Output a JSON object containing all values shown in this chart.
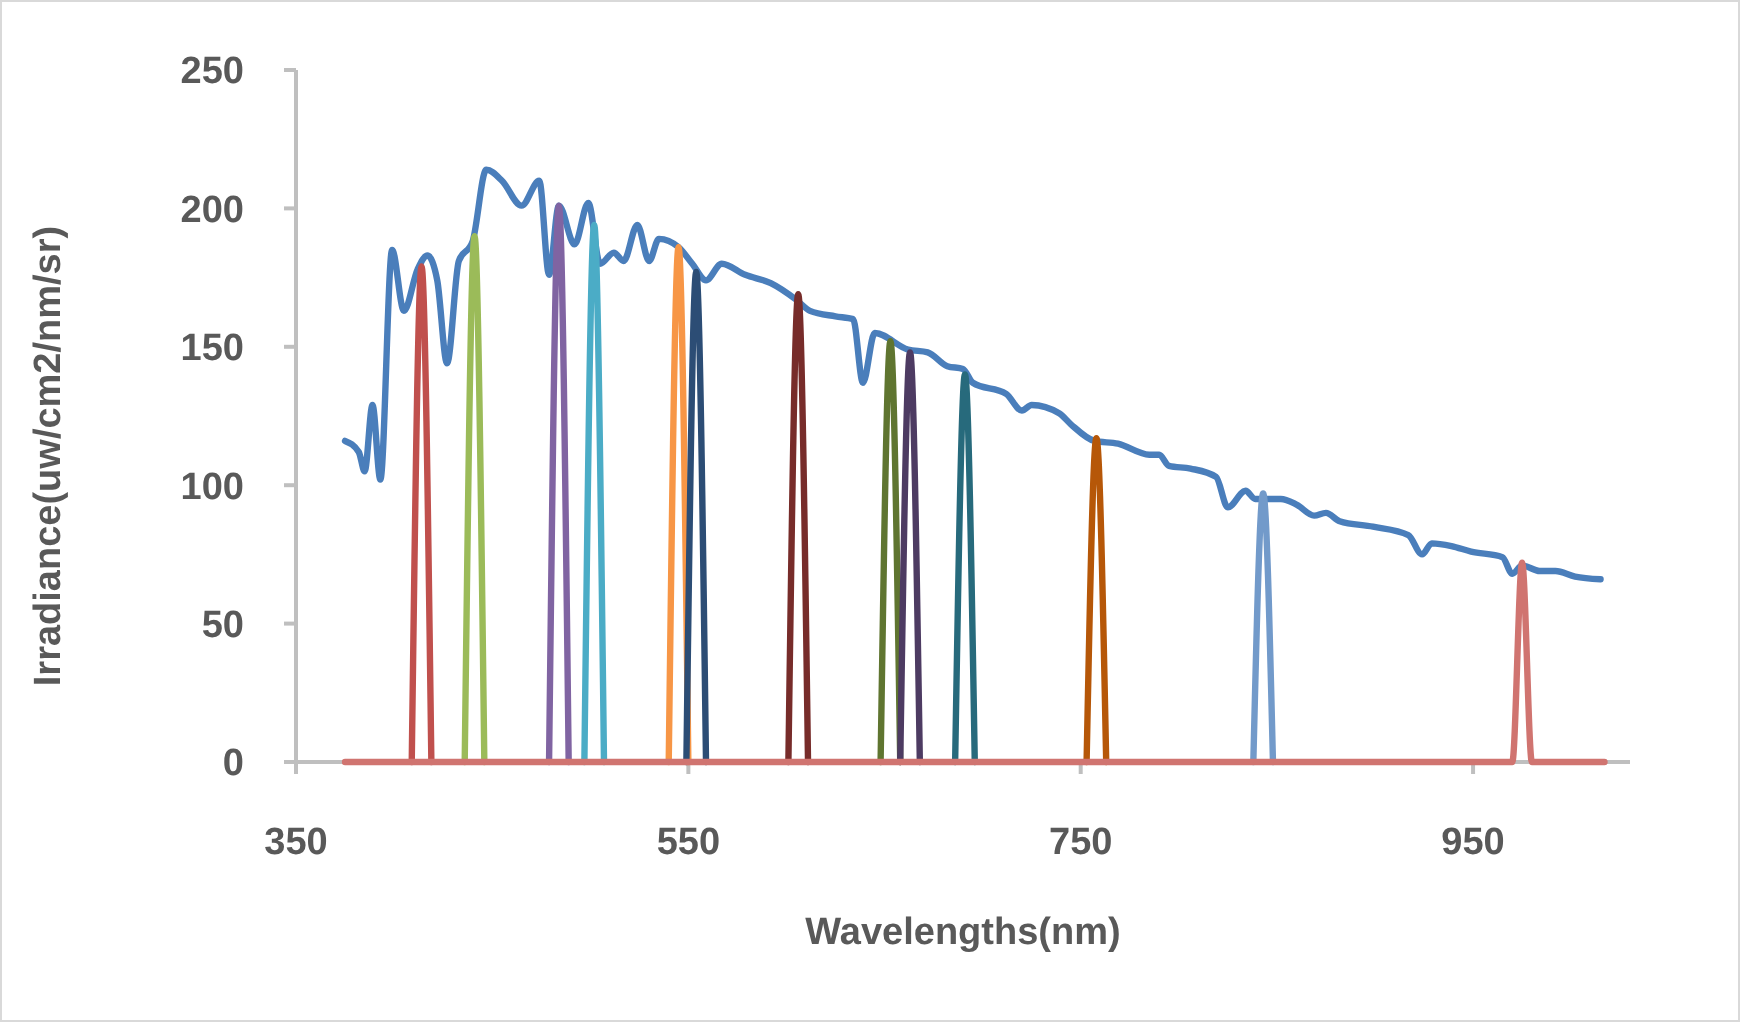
{
  "chart_data": {
    "type": "line",
    "xlabel": "Wavelengths(nm)",
    "ylabel": "Irradiance(uw/cm2/nm/sr)",
    "xlim": [
      350,
      1030
    ],
    "xticks": [
      350,
      550,
      750,
      950
    ],
    "ylim": [
      0,
      250
    ],
    "yticks": [
      0,
      50,
      100,
      150,
      200,
      250
    ],
    "grid": false,
    "series": [
      {
        "color": "#4a7ebb",
        "x": [
          375,
          382,
          385,
          389,
          393,
          399,
          405,
          412,
          417,
          422,
          427,
          433,
          440,
          447,
          455,
          465,
          474,
          479,
          484,
          492,
          499,
          505,
          512,
          517,
          524,
          530,
          535,
          545,
          552,
          559,
          567,
          579,
          592,
          605,
          612,
          625,
          634,
          639,
          645,
          662,
          672,
          682,
          690,
          695,
          712,
          720,
          725,
          739,
          745,
          757,
          769,
          785,
          790,
          795,
          806,
          819,
          825,
          834,
          839,
          852,
          860,
          869,
          875,
          882,
          899,
          917,
          924,
          929,
          939,
          949,
          965,
          970,
          975,
          984,
          992,
          1002,
          1015
        ],
        "values": [
          116,
          112,
          105,
          129,
          102,
          185,
          163,
          178,
          183,
          174,
          144,
          181,
          188,
          214,
          210,
          201,
          210,
          176,
          201,
          187,
          202,
          180,
          184,
          181,
          194,
          181,
          189,
          186,
          180,
          174,
          180,
          176,
          173,
          167,
          163,
          161,
          160,
          137,
          155,
          149,
          148,
          143,
          142,
          137,
          133,
          127,
          129,
          126,
          122,
          116,
          115,
          111,
          111,
          107,
          106,
          103,
          92,
          98,
          95,
          95,
          93,
          89,
          90,
          87,
          85,
          82,
          75,
          79,
          78,
          76,
          74,
          68,
          71,
          69,
          69,
          67,
          66
        ]
      },
      {
        "color": "#c0504d",
        "x": [
          409,
          414,
          419
        ],
        "values": [
          0,
          179,
          0
        ]
      },
      {
        "color": "#9bbb59",
        "x": [
          436,
          441,
          446
        ],
        "values": [
          0,
          190,
          0
        ]
      },
      {
        "color": "#8064a2",
        "x": [
          479,
          484,
          489
        ],
        "values": [
          0,
          201,
          0
        ]
      },
      {
        "color": "#4bacc6",
        "x": [
          497,
          502,
          507
        ],
        "values": [
          0,
          194,
          0
        ]
      },
      {
        "color": "#f79646",
        "x": [
          540,
          545,
          550
        ],
        "values": [
          0,
          186,
          0
        ]
      },
      {
        "color": "#2c4d75",
        "x": [
          549,
          554,
          559
        ],
        "values": [
          0,
          177,
          0
        ]
      },
      {
        "color": "#772c2a",
        "x": [
          601,
          606,
          611
        ],
        "values": [
          0,
          169,
          0
        ]
      },
      {
        "color": "#5f7530",
        "x": [
          648,
          653,
          658
        ],
        "values": [
          0,
          152,
          0
        ]
      },
      {
        "color": "#4d3b62",
        "x": [
          658,
          663,
          668
        ],
        "values": [
          0,
          148,
          0
        ]
      },
      {
        "color": "#276a7c",
        "x": [
          686,
          691,
          696
        ],
        "values": [
          0,
          140,
          0
        ]
      },
      {
        "color": "#b65708",
        "x": [
          753,
          758,
          763
        ],
        "values": [
          0,
          117,
          0
        ]
      },
      {
        "color": "#729aca",
        "x": [
          838,
          843,
          848
        ],
        "values": [
          0,
          97,
          0
        ]
      },
      {
        "color": "#d07470",
        "x": [
          375,
          970,
          975,
          980,
          1017
        ],
        "values": [
          0,
          0,
          72,
          0,
          0
        ]
      }
    ]
  }
}
